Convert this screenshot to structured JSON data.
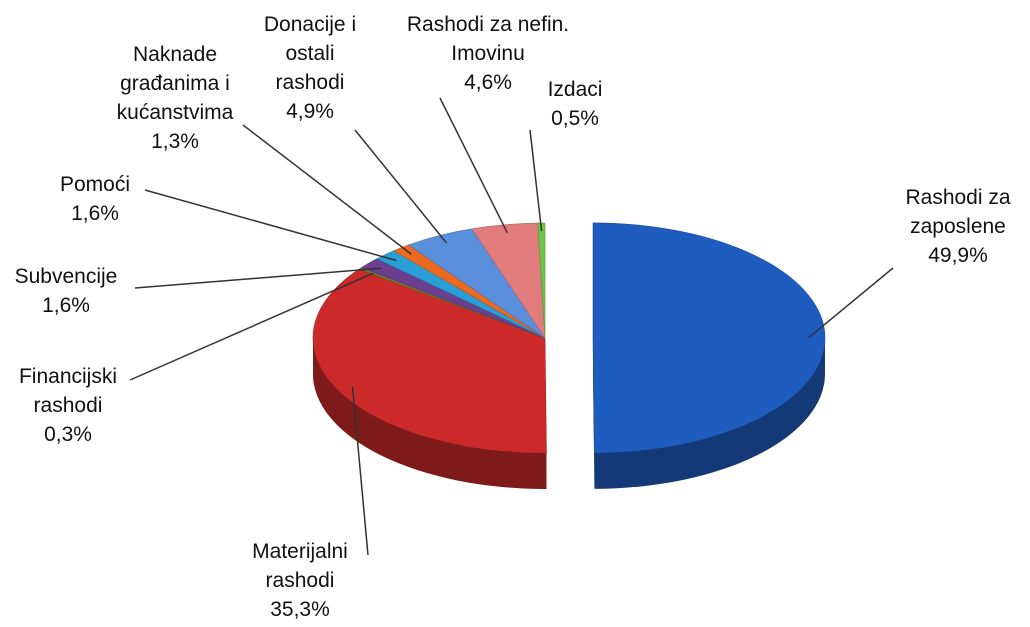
{
  "chart_data": {
    "type": "pie",
    "categories": [
      "Rashodi za zaposlene",
      "Materijalni rashodi",
      "Financijski rashodi",
      "Subvencije",
      "Pomoći",
      "Naknade građanima i kućanstvima",
      "Donacije i ostali rashodi",
      "Rashodi za nefin. Imovinu",
      "Izdaci"
    ],
    "values": [
      49.9,
      35.3,
      0.3,
      1.6,
      1.6,
      1.3,
      4.9,
      4.6,
      0.5
    ],
    "value_labels": [
      "49,9%",
      "35,3%",
      "0,3%",
      "1,6%",
      "1,6%",
      "1,3%",
      "4,9%",
      "4,6%",
      "0,5%"
    ],
    "colors": [
      "#1f5cbf",
      "#cc2a2a",
      "#6e7c2c",
      "#6a3f8f",
      "#2a9fd6",
      "#ec6a20",
      "#5a8fdc",
      "#e27c7c",
      "#6cc24a"
    ],
    "exploded": [
      0
    ]
  }
}
